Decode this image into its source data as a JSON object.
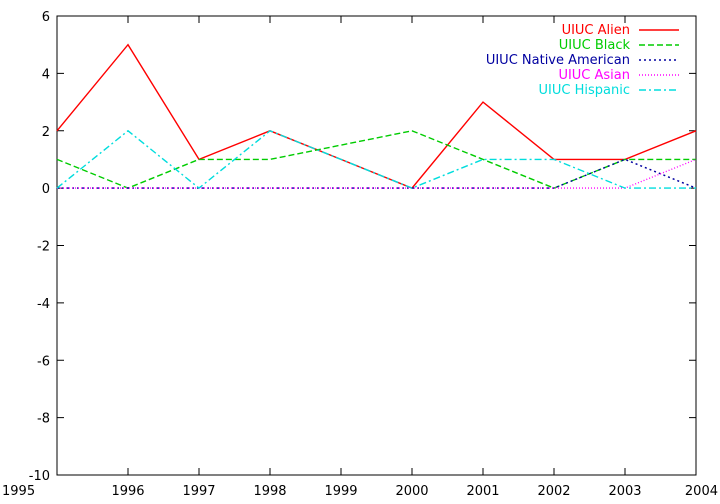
{
  "chart_data": {
    "type": "line",
    "title": "",
    "xlabel": "",
    "ylabel": "",
    "x": [
      1995,
      1996,
      1997,
      1998,
      1999,
      2000,
      2001,
      2002,
      2003,
      2004
    ],
    "xlim": [
      1995,
      2004
    ],
    "ylim": [
      -10,
      6
    ],
    "x_ticks": [
      "1995",
      "1996",
      "1997",
      "1998",
      "1999",
      "2000",
      "2001",
      "2002",
      "2003",
      "2004"
    ],
    "y_ticks": [
      "-10",
      "-8",
      "-6",
      "-4",
      "-2",
      "0",
      "2",
      "4",
      "6"
    ],
    "grid": false,
    "legend_position": "top-right",
    "series": [
      {
        "name": "UIUC Alien",
        "color": "#ff0000",
        "dash": "solid",
        "values": [
          2,
          5,
          1,
          2,
          1,
          0,
          3,
          1,
          1,
          2
        ]
      },
      {
        "name": "UIUC Black",
        "color": "#00cc00",
        "dash": "dashed",
        "values": [
          1,
          0,
          1,
          1,
          1.5,
          2,
          1,
          0,
          1,
          1
        ]
      },
      {
        "name": "UIUC Native American",
        "color": "#0000a0",
        "dash": "dotted",
        "values": [
          0,
          0,
          0,
          0,
          0,
          0,
          0,
          0,
          1,
          0
        ]
      },
      {
        "name": "UIUC Asian",
        "color": "#ff00ff",
        "dash": "dotted-fine",
        "values": [
          0,
          0,
          0,
          0,
          0,
          0,
          0,
          0,
          0,
          1
        ]
      },
      {
        "name": "UIUC Hispanic",
        "color": "#00dddd",
        "dash": "dash-dot",
        "values": [
          0,
          2,
          0,
          2,
          1,
          0,
          1,
          1,
          0,
          0
        ]
      }
    ]
  }
}
